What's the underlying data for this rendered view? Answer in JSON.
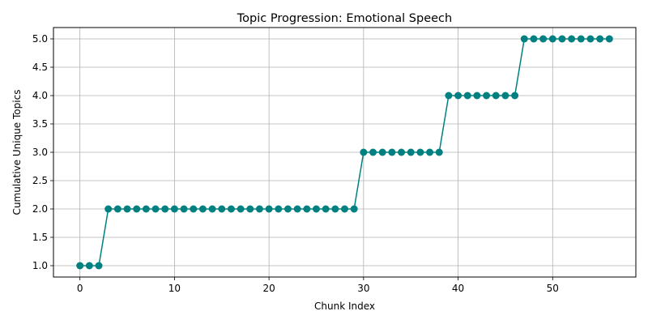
{
  "chart_data": {
    "type": "line",
    "title": "Topic Progression: Emotional Speech",
    "xlabel": "Chunk Index",
    "ylabel": "Cumulative Unique Topics",
    "xlim": [
      -2.8,
      58.8
    ],
    "ylim": [
      0.8,
      5.2
    ],
    "xticks": [
      0,
      10,
      20,
      30,
      40,
      50
    ],
    "xtick_labels": [
      "0",
      "10",
      "20",
      "30",
      "40",
      "50"
    ],
    "yticks": [
      1.0,
      1.5,
      2.0,
      2.5,
      3.0,
      3.5,
      4.0,
      4.5,
      5.0
    ],
    "ytick_labels": [
      "1.0",
      "1.5",
      "2.0",
      "2.5",
      "3.0",
      "3.5",
      "4.0",
      "4.5",
      "5.0"
    ],
    "grid": true,
    "marker": "circle",
    "color": "#008080",
    "x": [
      0,
      1,
      2,
      3,
      4,
      5,
      6,
      7,
      8,
      9,
      10,
      11,
      12,
      13,
      14,
      15,
      16,
      17,
      18,
      19,
      20,
      21,
      22,
      23,
      24,
      25,
      26,
      27,
      28,
      29,
      30,
      31,
      32,
      33,
      34,
      35,
      36,
      37,
      38,
      39,
      40,
      41,
      42,
      43,
      44,
      45,
      46,
      47,
      48,
      49,
      50,
      51,
      52,
      53,
      54,
      55,
      56
    ],
    "y": [
      1,
      1,
      1,
      2,
      2,
      2,
      2,
      2,
      2,
      2,
      2,
      2,
      2,
      2,
      2,
      2,
      2,
      2,
      2,
      2,
      2,
      2,
      2,
      2,
      2,
      2,
      2,
      2,
      2,
      2,
      3,
      3,
      3,
      3,
      3,
      3,
      3,
      3,
      3,
      4,
      4,
      4,
      4,
      4,
      4,
      4,
      4,
      5,
      5,
      5,
      5,
      5,
      5,
      5,
      5,
      5,
      5
    ]
  }
}
